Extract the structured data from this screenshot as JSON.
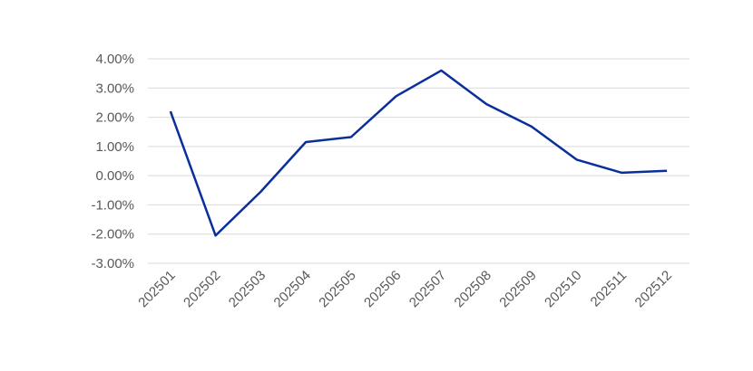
{
  "chart_data": {
    "type": "line",
    "title": "",
    "xlabel": "",
    "ylabel": "",
    "categories": [
      "202501",
      "202502",
      "202503",
      "202504",
      "202505",
      "202506",
      "202507",
      "202508",
      "202509",
      "202510",
      "202511",
      "202512"
    ],
    "series": [
      {
        "values": [
          2.2,
          -2.05,
          -0.55,
          1.15,
          1.32,
          2.72,
          3.6,
          2.45,
          1.68,
          0.55,
          0.1,
          0.17
        ],
        "color": "#0a2f9a"
      }
    ],
    "y_ticks": [
      "4.00%",
      "3.00%",
      "2.00%",
      "1.00%",
      "0.00%",
      "-1.00%",
      "-2.00%",
      "-3.00%"
    ],
    "ylim": [
      -3,
      4
    ],
    "grid": true,
    "legend": "none"
  }
}
